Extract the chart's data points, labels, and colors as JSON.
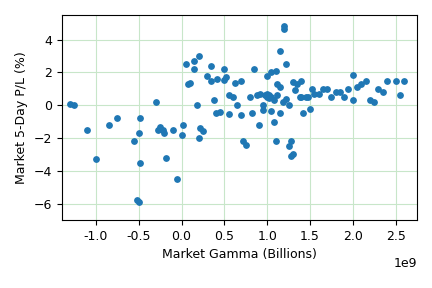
{
  "x": [
    -1300000000.0,
    -1250000000.0,
    -1100000000.0,
    -1000000000.0,
    -850000000.0,
    -750000000.0,
    -550000000.0,
    -520000000.0,
    -500000000.0,
    -500000000.0,
    -480000000.0,
    -480000000.0,
    -300000000.0,
    -280000000.0,
    -250000000.0,
    -220000000.0,
    -200000000.0,
    -180000000.0,
    -100000000.0,
    -50000000.0,
    0.0,
    20000000.0,
    50000000.0,
    80000000.0,
    100000000.0,
    150000000.0,
    150000000.0,
    180000000.0,
    200000000.0,
    200000000.0,
    220000000.0,
    250000000.0,
    300000000.0,
    350000000.0,
    350000000.0,
    380000000.0,
    400000000.0,
    420000000.0,
    450000000.0,
    500000000.0,
    500000000.0,
    520000000.0,
    550000000.0,
    550000000.0,
    600000000.0,
    620000000.0,
    650000000.0,
    700000000.0,
    700000000.0,
    720000000.0,
    750000000.0,
    800000000.0,
    820000000.0,
    850000000.0,
    880000000.0,
    900000000.0,
    920000000.0,
    950000000.0,
    950000000.0,
    980000000.0,
    1000000000.0,
    1000000000.0,
    1000000000.0,
    1020000000.0,
    1020000000.0,
    1050000000.0,
    1050000000.0,
    1050000000.0,
    1080000000.0,
    1080000000.0,
    1100000000.0,
    1100000000.0,
    1120000000.0,
    1120000000.0,
    1150000000.0,
    1150000000.0,
    1150000000.0,
    1180000000.0,
    1200000000.0,
    1200000000.0,
    1220000000.0,
    1220000000.0,
    1250000000.0,
    1250000000.0,
    1280000000.0,
    1280000000.0,
    1300000000.0,
    1300000000.0,
    1320000000.0,
    1350000000.0,
    1380000000.0,
    1400000000.0,
    1400000000.0,
    1420000000.0,
    1450000000.0,
    1480000000.0,
    1500000000.0,
    1520000000.0,
    1550000000.0,
    1600000000.0,
    1650000000.0,
    1700000000.0,
    1750000000.0,
    1800000000.0,
    1850000000.0,
    1900000000.0,
    1950000000.0,
    2000000000.0,
    2000000000.0,
    2050000000.0,
    2100000000.0,
    2150000000.0,
    2200000000.0,
    2250000000.0,
    2300000000.0,
    2350000000.0,
    2400000000.0,
    2500000000.0,
    2550000000.0,
    2600000000.0
  ],
  "y": [
    0.1,
    0.0,
    -1.5,
    -3.3,
    -1.2,
    -0.8,
    -2.2,
    -5.8,
    -5.9,
    -1.7,
    -0.8,
    -3.5,
    0.2,
    -1.5,
    -1.3,
    -1.5,
    -1.7,
    -3.2,
    -1.5,
    -4.5,
    -1.8,
    -1.2,
    2.5,
    1.3,
    1.35,
    2.7,
    2.2,
    0.0,
    -2.0,
    3.0,
    -1.4,
    -1.6,
    1.8,
    1.5,
    2.4,
    0.3,
    -0.5,
    1.6,
    -0.4,
    2.2,
    1.55,
    1.7,
    0.6,
    -0.55,
    0.5,
    1.35,
    0.0,
    -0.6,
    1.5,
    -2.2,
    -2.4,
    0.5,
    -0.5,
    2.2,
    0.6,
    -1.2,
    0.7,
    -0.3,
    0.0,
    0.6,
    0.5,
    0.7,
    1.8,
    0.65,
    0.45,
    2.0,
    0.5,
    -0.35,
    -1.0,
    0.3,
    2.1,
    -2.2,
    1.3,
    0.6,
    3.3,
    1.1,
    -0.5,
    0.2,
    4.65,
    4.8,
    0.4,
    2.5,
    -2.5,
    0.0,
    -3.1,
    -2.2,
    -3.0,
    1.4,
    0.9,
    1.3,
    0.5,
    0.5,
    1.5,
    -0.5,
    0.5,
    0.5,
    -0.2,
    1.0,
    0.7,
    0.7,
    1.0,
    1.0,
    0.5,
    0.8,
    0.8,
    0.5,
    1.0,
    0.3,
    1.85,
    1.1,
    1.3,
    1.5,
    0.3,
    0.2,
    1.0,
    0.8,
    1.5,
    1.5,
    0.6,
    1.5
  ],
  "xlabel": "Market Gamma (Billions)",
  "ylabel": "Market 5-Day P/L (%)",
  "dot_color": "#1f77b4",
  "dot_size": 15,
  "grid_color": "#c8e6c9",
  "bg_color": "#ffffff",
  "xlim": [
    -1400000000.0,
    2750000000.0
  ],
  "ylim": [
    -7.0,
    5.5
  ],
  "xticks": [
    -1000000000.0,
    -500000000.0,
    0.0,
    500000000.0,
    1000000000.0,
    1500000000.0,
    2000000000.0,
    2500000000.0
  ],
  "yticks": [
    -6,
    -4,
    -2,
    0,
    2,
    4
  ]
}
